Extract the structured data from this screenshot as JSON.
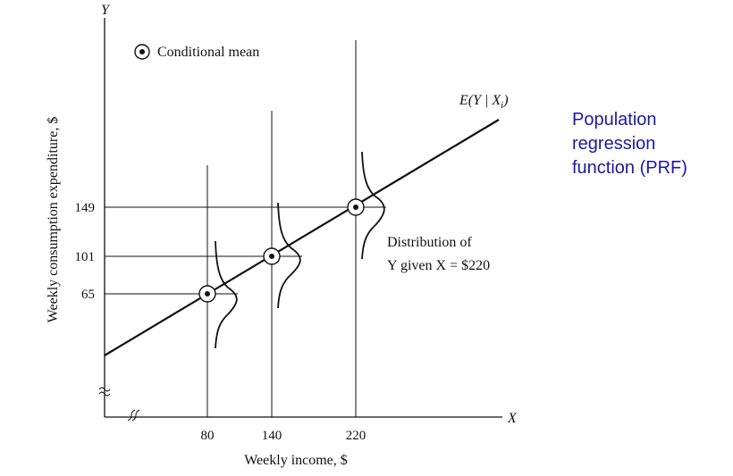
{
  "figure": {
    "x_axis_letter": "X",
    "y_axis_letter": "Y",
    "xlabel": "Weekly income, $",
    "ylabel": "Weekly consumption expenditure, $",
    "legend_label": "Conditional mean",
    "x_ticks": [
      "80",
      "140",
      "220"
    ],
    "y_ticks": [
      "149",
      "101",
      "65"
    ],
    "line_label": {
      "prefix": "E(Y | X",
      "subscript": "i",
      "suffix": ")"
    },
    "dist_note": {
      "line1": "Distribution of",
      "line2": "Y given X  = $220"
    }
  },
  "side_label": {
    "lines": [
      "Population",
      "regression",
      "function (PRF)"
    ]
  },
  "colors": {
    "ink": "#111111",
    "side_label": "#1a1aa6"
  },
  "chart_data": {
    "type": "line",
    "title": "",
    "xlabel": "Weekly income, $",
    "ylabel": "Weekly consumption expenditure, $",
    "conditional_means": {
      "x": [
        80,
        140,
        220
      ],
      "y": [
        65,
        101,
        149
      ]
    },
    "series": [
      {
        "name": "E(Y | Xi)",
        "x": [
          80,
          140,
          220
        ],
        "y": [
          65,
          101,
          149
        ]
      }
    ],
    "axis_breaks": [
      "x",
      "y"
    ],
    "grid": false
  }
}
